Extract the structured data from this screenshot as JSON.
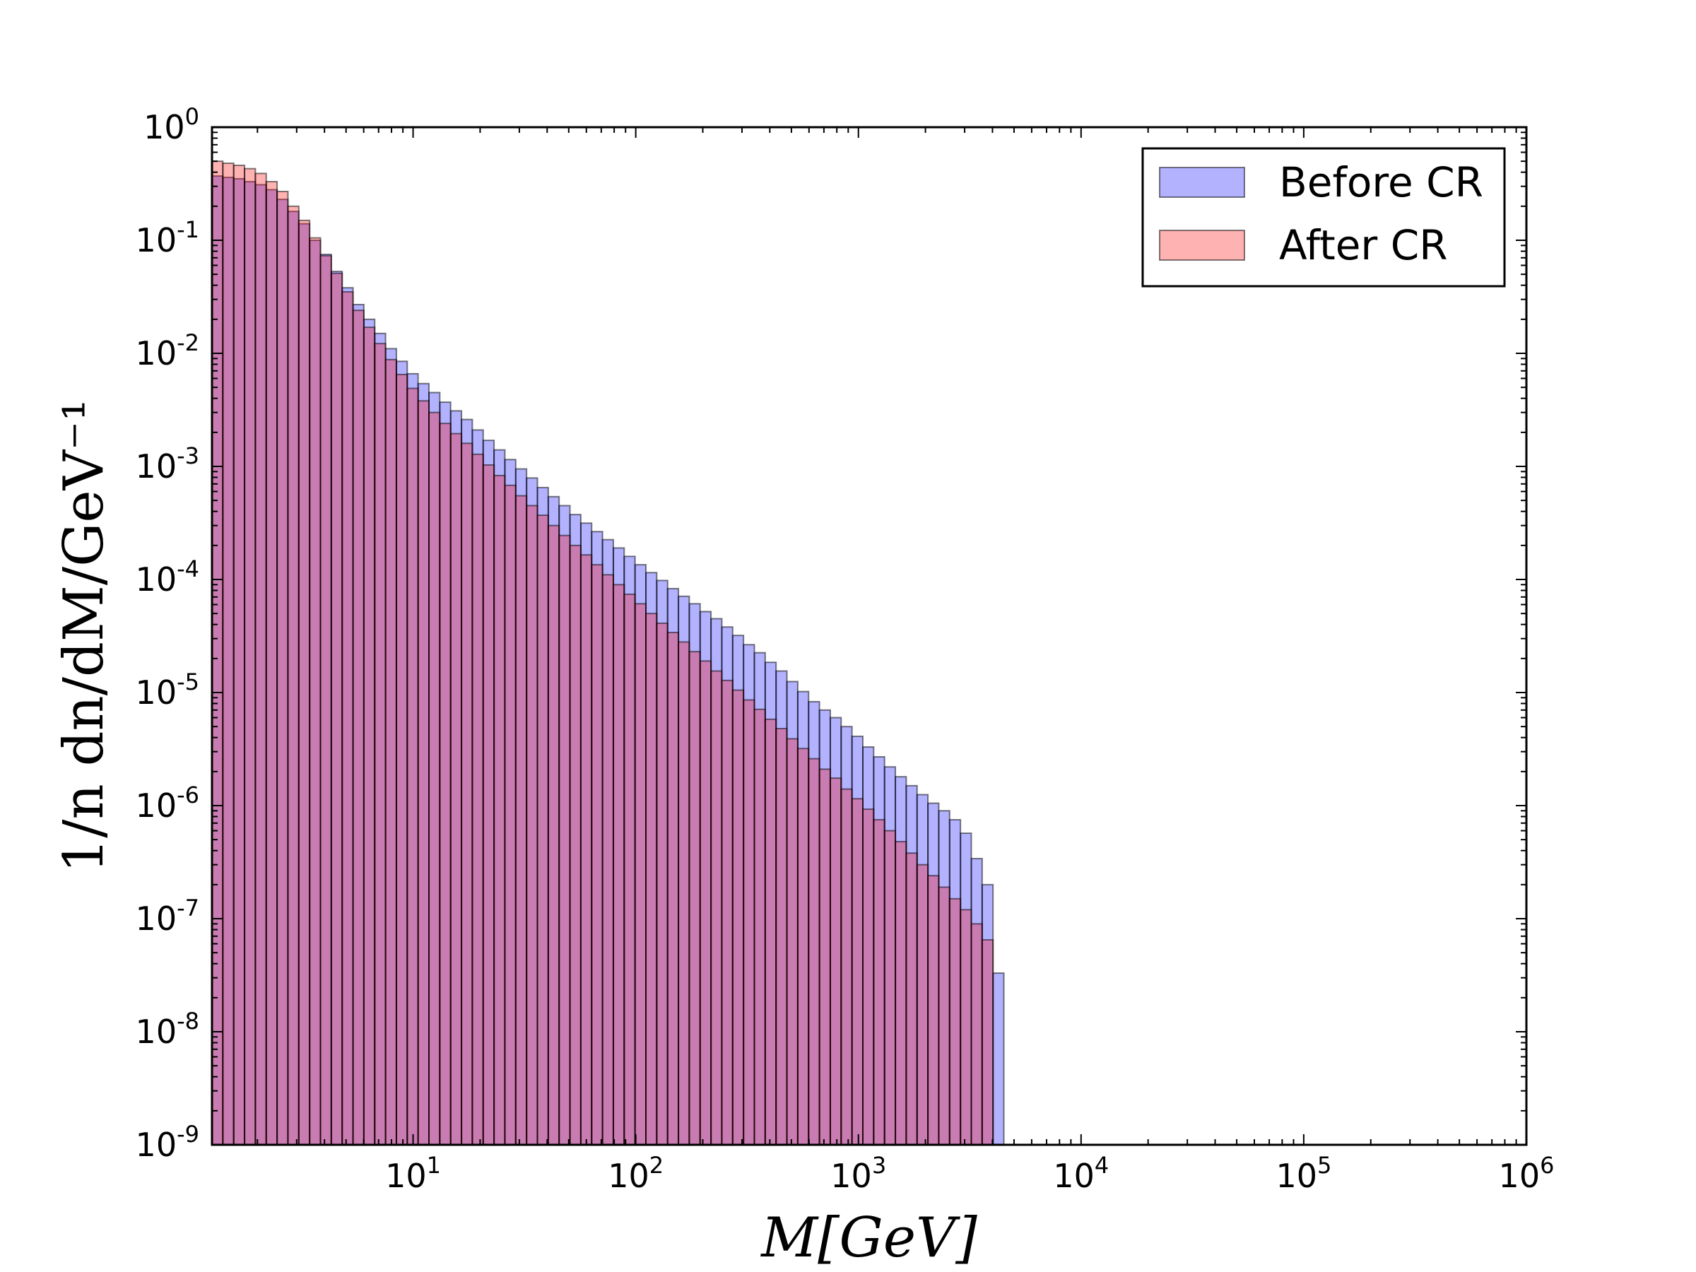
{
  "chart_data": {
    "type": "bar",
    "xscale": "log",
    "yscale": "log",
    "xlim": [
      1.25,
      1000000
    ],
    "ylim": [
      1e-09,
      1
    ],
    "xlabel": "M[GeV]",
    "ylabel": "1/n   dn/dM/GeV⁻¹",
    "grid": false,
    "legend_position": "top-right",
    "x_ticks": [
      {
        "value": 10,
        "base": "10",
        "exp": "1"
      },
      {
        "value": 100,
        "base": "10",
        "exp": "2"
      },
      {
        "value": 1000,
        "base": "10",
        "exp": "3"
      },
      {
        "value": 10000,
        "base": "10",
        "exp": "4"
      },
      {
        "value": 100000,
        "base": "10",
        "exp": "5"
      },
      {
        "value": 1000000,
        "base": "10",
        "exp": "6"
      }
    ],
    "y_ticks": [
      {
        "value": 1,
        "base": "10",
        "exp": "0"
      },
      {
        "value": 0.1,
        "base": "10",
        "exp": "-1"
      },
      {
        "value": 0.01,
        "base": "10",
        "exp": "-2"
      },
      {
        "value": 0.001,
        "base": "10",
        "exp": "-3"
      },
      {
        "value": 0.0001,
        "base": "10",
        "exp": "-4"
      },
      {
        "value": 1e-05,
        "base": "10",
        "exp": "-5"
      },
      {
        "value": 1e-06,
        "base": "10",
        "exp": "-6"
      },
      {
        "value": 1e-07,
        "base": "10",
        "exp": "-7"
      },
      {
        "value": 1e-08,
        "base": "10",
        "exp": "-8"
      },
      {
        "value": 1e-09,
        "base": "10",
        "exp": "-9"
      }
    ],
    "bins": {
      "start": 1.25,
      "end": 4500,
      "count": 73
    },
    "series": [
      {
        "name": "Before CR",
        "color": "#0000ff",
        "opacity": 0.3,
        "values": [
          0.37,
          0.36,
          0.35,
          0.33,
          0.31,
          0.28,
          0.23,
          0.18,
          0.14,
          0.1,
          0.075,
          0.053,
          0.038,
          0.027,
          0.02,
          0.015,
          0.011,
          0.0085,
          0.0066,
          0.0054,
          0.0045,
          0.0037,
          0.0031,
          0.0026,
          0.0021,
          0.0017,
          0.0014,
          0.00115,
          0.00095,
          0.00079,
          0.00065,
          0.00054,
          0.00045,
          0.000375,
          0.000315,
          0.000265,
          0.000225,
          0.00019,
          0.00016,
          0.000135,
          0.000115,
          9.8e-05,
          8.3e-05,
          7.1e-05,
          6.1e-05,
          5.2e-05,
          4.5e-05,
          3.8e-05,
          3.2e-05,
          2.65e-05,
          2.25e-05,
          1.85e-05,
          1.55e-05,
          1.25e-05,
          1.02e-05,
          8.3e-06,
          7e-06,
          6e-06,
          5e-06,
          4.1e-06,
          3.3e-06,
          2.7e-06,
          2.2e-06,
          1.8e-06,
          1.5e-06,
          1.25e-06,
          1.05e-06,
          9e-07,
          7.5e-07,
          5.7e-07,
          3.4e-07,
          2e-07,
          3.3e-08
        ]
      },
      {
        "name": "After CR",
        "color": "#ff0000",
        "opacity": 0.3,
        "values": [
          0.5,
          0.48,
          0.46,
          0.43,
          0.39,
          0.33,
          0.27,
          0.2,
          0.15,
          0.105,
          0.073,
          0.051,
          0.035,
          0.024,
          0.017,
          0.0122,
          0.0088,
          0.0065,
          0.0049,
          0.0038,
          0.003,
          0.0024,
          0.00195,
          0.0016,
          0.00128,
          0.00103,
          0.00083,
          0.00068,
          0.00055,
          0.00045,
          0.00037,
          0.0003,
          0.000245,
          0.0002,
          0.000165,
          0.000135,
          0.00011,
          9e-05,
          7.4e-05,
          6.1e-05,
          5e-05,
          4.1e-05,
          3.4e-05,
          2.8e-05,
          2.3e-05,
          1.9e-05,
          1.55e-05,
          1.28e-05,
          1.05e-05,
          8.6e-06,
          7.1e-06,
          5.8e-06,
          4.8e-06,
          3.9e-06,
          3.2e-06,
          2.6e-06,
          2.1e-06,
          1.75e-06,
          1.4e-06,
          1.15e-06,
          9.3e-07,
          7.5e-07,
          6e-07,
          4.8e-07,
          3.8e-07,
          3e-07,
          2.4e-07,
          1.9e-07,
          1.5e-07,
          1.2e-07,
          9e-08,
          6.5e-08,
          0
        ]
      }
    ]
  }
}
